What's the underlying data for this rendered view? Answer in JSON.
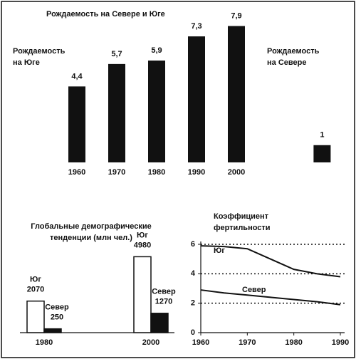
{
  "chart_data": [
    {
      "type": "bar",
      "title": [
        "Рождаемость на Севере и Юге"
      ],
      "categories": [
        "1960",
        "1970",
        "1980",
        "1990",
        "2000",
        null
      ],
      "values": [
        4.4,
        5.7,
        5.9,
        7.3,
        7.9,
        1
      ],
      "value_labels": [
        "4,4",
        "5,7",
        "5,9",
        "7,3",
        "7,9",
        "1"
      ],
      "color": "#111111",
      "ylim": [
        0,
        8.5
      ],
      "annotations": [
        [
          "Рождаемость",
          "на Юге"
        ],
        [
          "Рождаемость",
          "на Севере"
        ]
      ]
    },
    {
      "type": "bar",
      "title": [
        "Глобальные демографические",
        "тенденции (млн чел.)"
      ],
      "categories": [
        "1980",
        "2000"
      ],
      "series": [
        {
          "name": "Юг",
          "color": "#ffffff",
          "values": [
            2070,
            4980
          ]
        },
        {
          "name": "Север",
          "color": "#111111",
          "values": [
            250,
            1270
          ]
        }
      ],
      "ylim": [
        0,
        5000
      ]
    },
    {
      "type": "line",
      "title": [
        "Коэффициент",
        "фертильности"
      ],
      "x": [
        1960,
        1965,
        1970,
        1975,
        1980,
        1985,
        1990
      ],
      "series": [
        {
          "name": "Юг",
          "color": "#111111",
          "values": [
            5.9,
            5.85,
            5.7,
            5.0,
            4.3,
            4.0,
            3.8
          ]
        },
        {
          "name": "Север",
          "color": "#111111",
          "values": [
            2.9,
            2.7,
            2.55,
            2.4,
            2.25,
            2.1,
            1.9
          ]
        }
      ],
      "xlim": [
        1960,
        1990
      ],
      "xticks": [
        1960,
        1970,
        1980,
        1990
      ],
      "ylim": [
        0,
        6
      ],
      "yticks": [
        0,
        2,
        4,
        6
      ],
      "grid": true
    }
  ]
}
